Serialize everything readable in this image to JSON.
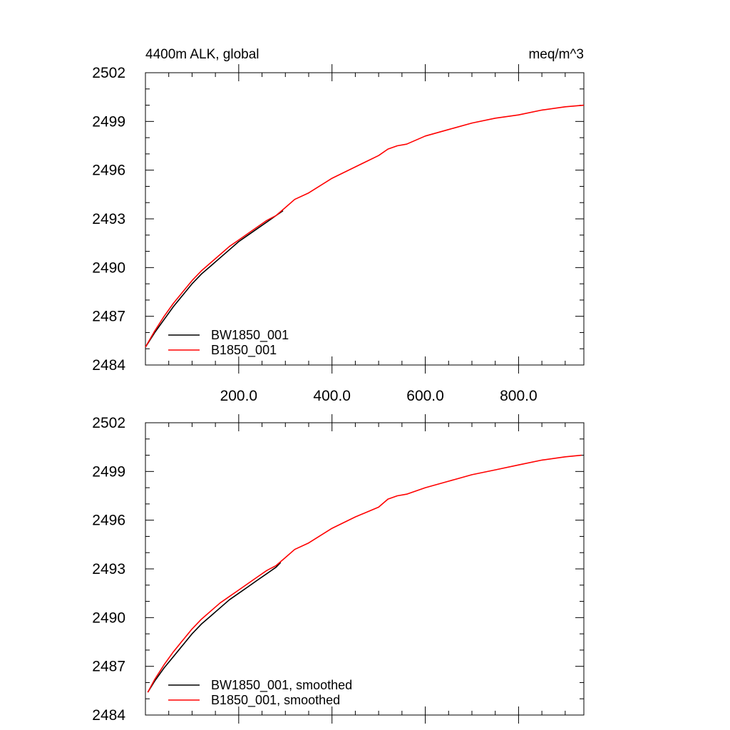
{
  "chart_data": [
    {
      "type": "line",
      "title_left": "4400m ALK, global",
      "title_right": "meq/m^3",
      "xlim": [
        0,
        940
      ],
      "ylim": [
        2484,
        2502
      ],
      "y_ticks": [
        "2484",
        "2487",
        "2490",
        "2493",
        "2496",
        "2499",
        "2502"
      ],
      "x_ticks": [
        200,
        400,
        600,
        800
      ],
      "x_tick_labels": [
        "200.0",
        "400.0",
        "600.0",
        "800.0"
      ],
      "legend_location": "bottom-left",
      "series": [
        {
          "name": "BW1850_001",
          "color": "#000000",
          "x": [
            0,
            20,
            40,
            60,
            80,
            100,
            120,
            140,
            160,
            180,
            200,
            220,
            240,
            260,
            280,
            295
          ],
          "y": [
            2485.1,
            2486.0,
            2486.8,
            2487.6,
            2488.3,
            2489.0,
            2489.6,
            2490.1,
            2490.6,
            2491.1,
            2491.6,
            2492.0,
            2492.4,
            2492.8,
            2493.2,
            2493.5
          ]
        },
        {
          "name": "B1850_001",
          "color": "#ff0000",
          "x": [
            0,
            20,
            40,
            60,
            80,
            100,
            120,
            140,
            160,
            180,
            200,
            220,
            240,
            260,
            280,
            300,
            320,
            350,
            400,
            450,
            500,
            520,
            540,
            560,
            600,
            650,
            700,
            750,
            800,
            850,
            900,
            940
          ],
          "y": [
            2485.1,
            2486.1,
            2487.0,
            2487.8,
            2488.5,
            2489.2,
            2489.8,
            2490.3,
            2490.8,
            2491.3,
            2491.7,
            2492.1,
            2492.5,
            2492.9,
            2493.2,
            2493.7,
            2494.2,
            2494.6,
            2495.5,
            2496.2,
            2496.9,
            2497.3,
            2497.5,
            2497.6,
            2498.1,
            2498.5,
            2498.9,
            2499.2,
            2499.4,
            2499.7,
            2499.9,
            2500.0
          ]
        }
      ]
    },
    {
      "type": "line",
      "xlim": [
        0,
        940
      ],
      "ylim": [
        2484,
        2502
      ],
      "y_ticks": [
        "2484",
        "2487",
        "2490",
        "2493",
        "2496",
        "2499",
        "2502"
      ],
      "x_ticks": [
        200,
        400,
        600,
        800
      ],
      "legend_location": "bottom-left",
      "series": [
        {
          "name": "BW1850_001, smoothed",
          "color": "#000000",
          "x": [
            5,
            20,
            40,
            60,
            80,
            100,
            120,
            140,
            160,
            180,
            200,
            220,
            240,
            260,
            280,
            290
          ],
          "y": [
            2485.4,
            2486.1,
            2486.9,
            2487.6,
            2488.3,
            2489.0,
            2489.6,
            2490.1,
            2490.6,
            2491.1,
            2491.5,
            2491.9,
            2492.3,
            2492.7,
            2493.1,
            2493.4
          ]
        },
        {
          "name": "B1850_001, smoothed",
          "color": "#ff0000",
          "x": [
            5,
            20,
            40,
            60,
            80,
            100,
            120,
            140,
            160,
            180,
            200,
            220,
            240,
            260,
            280,
            300,
            320,
            350,
            400,
            450,
            500,
            520,
            540,
            560,
            600,
            650,
            700,
            750,
            800,
            850,
            900,
            935
          ],
          "y": [
            2485.4,
            2486.2,
            2487.1,
            2487.9,
            2488.6,
            2489.3,
            2489.9,
            2490.4,
            2490.9,
            2491.3,
            2491.7,
            2492.1,
            2492.5,
            2492.9,
            2493.2,
            2493.7,
            2494.2,
            2494.6,
            2495.5,
            2496.2,
            2496.8,
            2497.3,
            2497.5,
            2497.6,
            2498.0,
            2498.4,
            2498.8,
            2499.1,
            2499.4,
            2499.7,
            2499.9,
            2500.0
          ]
        }
      ]
    }
  ]
}
